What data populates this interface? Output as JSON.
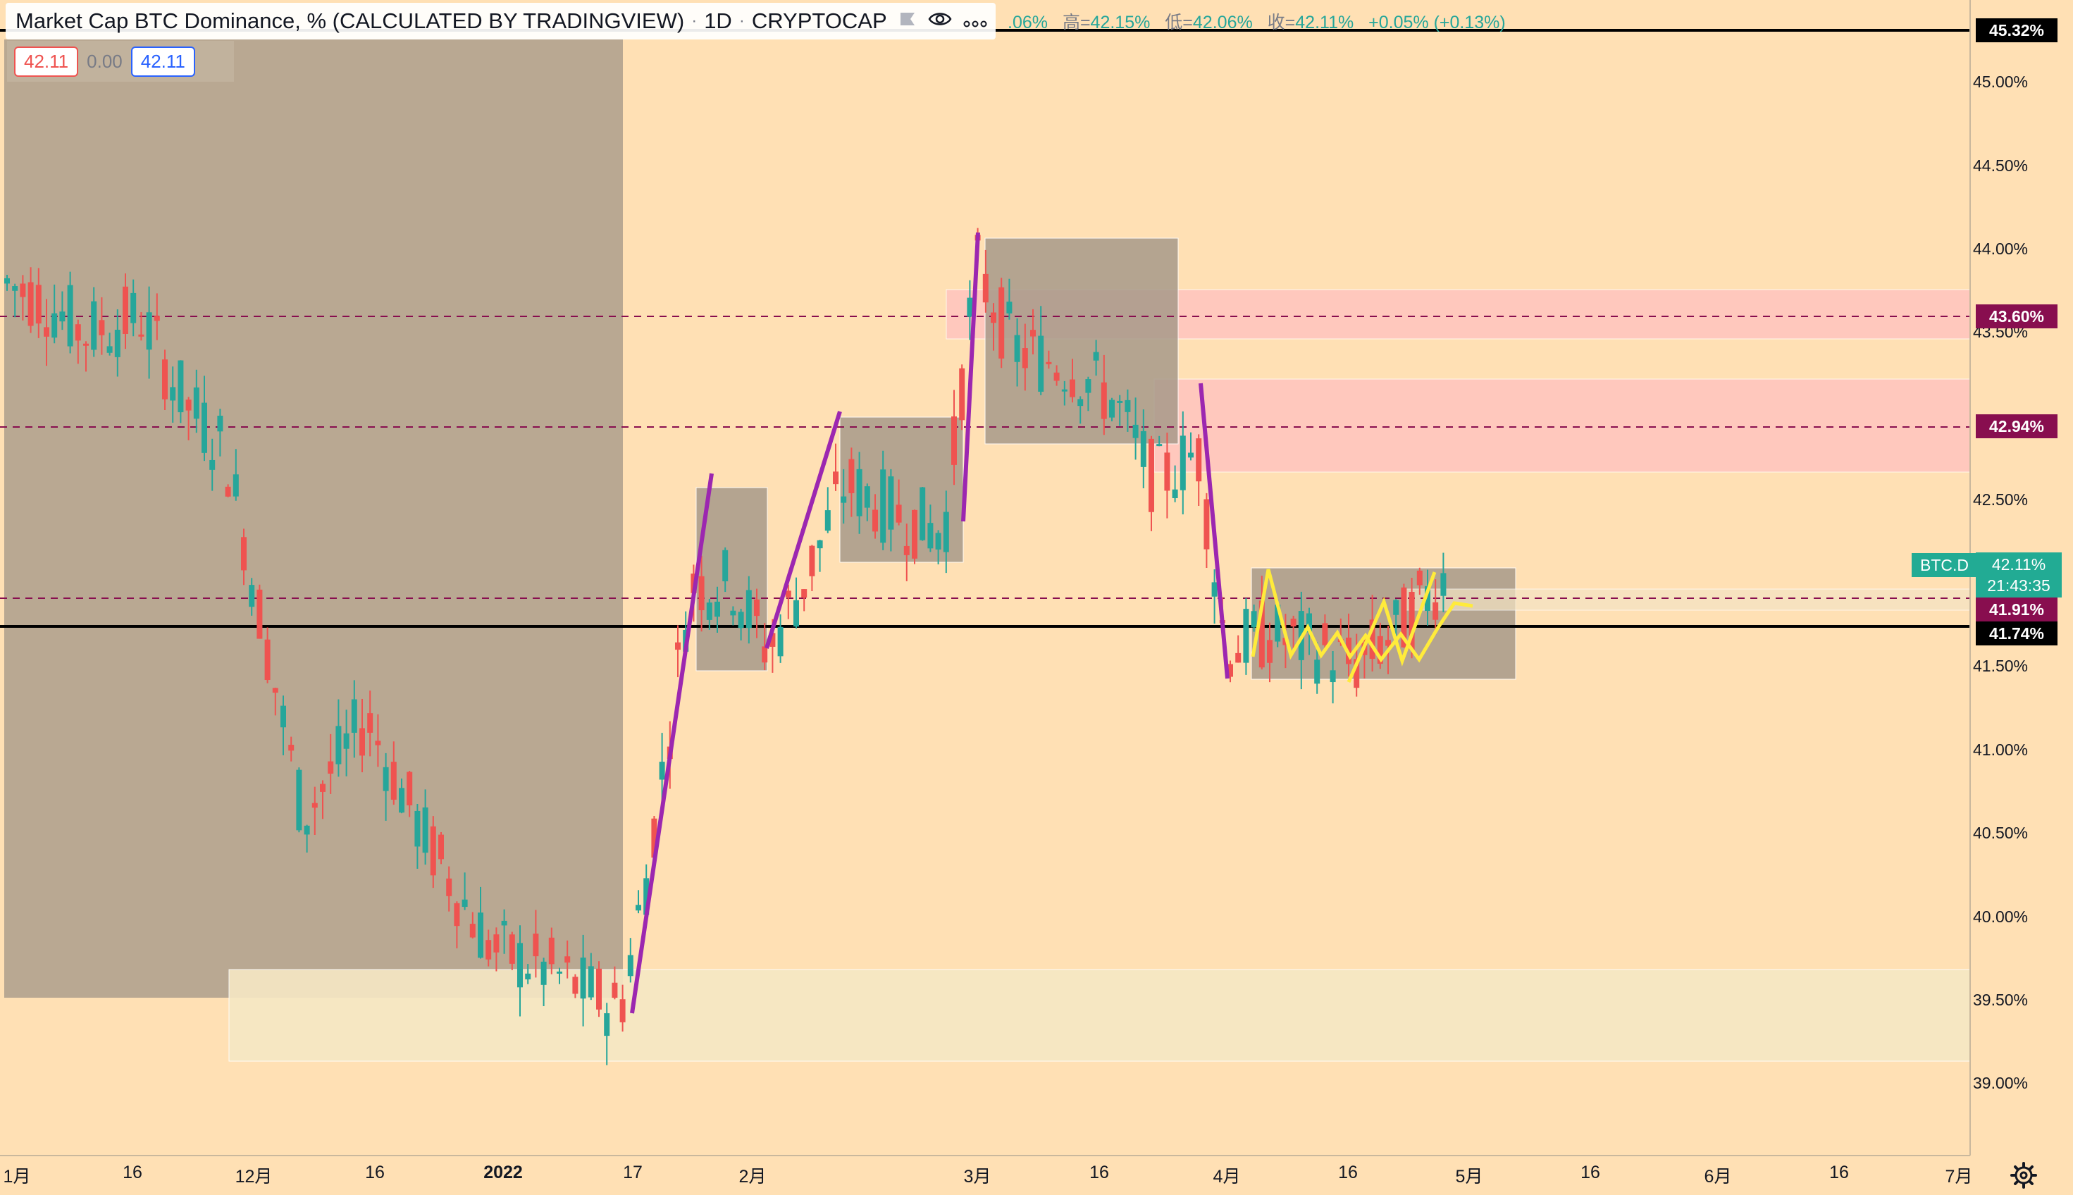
{
  "legend": {
    "title": "Market Cap BTC Dominance, % (CALCULATED BY TRADINGVIEW)",
    "interval": "1D",
    "exchange": "CRYPTOCAP",
    "icons": [
      "flag-icon",
      "eye-icon",
      "more-icon"
    ]
  },
  "ohlc": {
    "open_partial": ".06%",
    "high_label": "高=",
    "high_value": "42.15%",
    "low_label": "低=",
    "low_value": "42.06%",
    "close_label": "收=",
    "close_value": "42.11%",
    "change": "+0.05% (+0.13%)"
  },
  "value_chips": {
    "sell": "42.11",
    "spread": "0.00",
    "buy": "42.11"
  },
  "price_axis": {
    "labels": [
      "45.00%",
      "44.50%",
      "44.00%",
      "43.50%",
      "42.50%",
      "41.50%",
      "41.00%",
      "40.50%",
      "40.00%",
      "39.50%",
      "39.00%"
    ],
    "tags": [
      {
        "text": "45.32%",
        "color": "#000000"
      },
      {
        "text": "43.60%",
        "color": "#880e4f"
      },
      {
        "text": "42.94%",
        "color": "#880e4f"
      },
      {
        "text": "41.91%",
        "color": "#880e4f"
      },
      {
        "text": "41.74%",
        "color": "#000000"
      }
    ],
    "symbol": "BTC.D",
    "last_price": "42.11%",
    "countdown": "21:43:35"
  },
  "time_axis": {
    "labels": [
      {
        "text": "1月"
      },
      {
        "text": "16"
      },
      {
        "text": "12月"
      },
      {
        "text": "16"
      },
      {
        "text": "2022",
        "bold": true
      },
      {
        "text": "17"
      },
      {
        "text": "2月"
      },
      {
        "text": "3月"
      },
      {
        "text": "16"
      },
      {
        "text": "4月"
      },
      {
        "text": "16"
      },
      {
        "text": "5月"
      },
      {
        "text": "16"
      },
      {
        "text": "6月"
      },
      {
        "text": "16"
      },
      {
        "text": "7月"
      }
    ]
  },
  "colors": {
    "up": "#26a69a",
    "down": "#ef5350",
    "background": "#ffe0b4",
    "zone": "#a89a8a",
    "pink_zone": "#ffc1c1",
    "wave": "#ffeb3b",
    "trend": "#9c27b0"
  }
}
